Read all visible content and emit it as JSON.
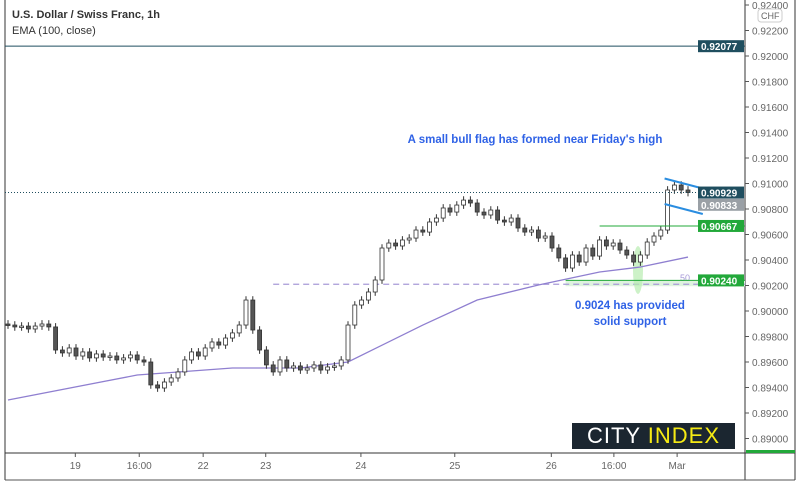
{
  "header": {
    "title": "U.S. Dollar / Swiss Franc, 1h",
    "indicator": "EMA (100, close)"
  },
  "annotations": {
    "flag_note": "A small bull flag has formed near Friday's high",
    "support_note": "0.9024 has provided solid support",
    "fib_label": "50"
  },
  "logo": {
    "part1": "CITY",
    "part2": "INDEX"
  },
  "chart_data": {
    "type": "candlestick",
    "currency_label": "CHF",
    "ylim": [
      0.8886,
      0.9242
    ],
    "y_ticks": [
      "0.92400",
      "0.92200",
      "0.92000",
      "0.91800",
      "0.91600",
      "0.91400",
      "0.91200",
      "0.91000",
      "0.90800",
      "0.90600",
      "0.90400",
      "0.90200",
      "0.90000",
      "0.89800",
      "0.89600",
      "0.89400",
      "0.89200",
      "0.89000"
    ],
    "x_ticks": [
      {
        "label": "19",
        "at": 9.9
      },
      {
        "label": "16:00",
        "at": 19.3
      },
      {
        "label": "22",
        "at": 28.7
      },
      {
        "label": "23",
        "at": 37.9
      },
      {
        "label": "24",
        "at": 51.9
      },
      {
        "label": "25",
        "at": 65.7
      },
      {
        "label": "26",
        "at": 79.9
      },
      {
        "label": "16:00",
        "at": 89.1
      },
      {
        "label": "Mar",
        "at": 98.4
      }
    ],
    "closes": [
      0.8989,
      0.89875,
      0.89882,
      0.89859,
      0.89882,
      0.89898,
      0.89875,
      0.89694,
      0.89671,
      0.8971,
      0.89647,
      0.89679,
      0.89632,
      0.89663,
      0.89639,
      0.89647,
      0.89616,
      0.89632,
      0.89655,
      0.89616,
      0.896,
      0.8942,
      0.89396,
      0.89443,
      0.89475,
      0.89522,
      0.89616,
      0.89679,
      0.89647,
      0.8971,
      0.89757,
      0.89733,
      0.89788,
      0.89828,
      0.8989,
      0.90086,
      0.89851,
      0.89694,
      0.89577,
      0.89522,
      0.89616,
      0.89553,
      0.89569,
      0.89537,
      0.89553,
      0.89577,
      0.89537,
      0.89561,
      0.89569,
      0.89616,
      0.8989,
      0.90047,
      0.90086,
      0.90149,
      0.90243,
      0.90494,
      0.90533,
      0.9051,
      0.90557,
      0.90572,
      0.90635,
      0.90619,
      0.90698,
      0.90729,
      0.90808,
      0.90776,
      0.90831,
      0.9087,
      0.90847,
      0.90776,
      0.90753,
      0.90792,
      0.90713,
      0.90698,
      0.90729,
      0.90651,
      0.90619,
      0.90635,
      0.90572,
      0.90588,
      0.90494,
      0.90416,
      0.90337,
      0.90439,
      0.90384,
      0.90494,
      0.90431,
      0.90557,
      0.9051,
      0.90533,
      0.90478,
      0.90439,
      0.90384,
      0.90439,
      0.90541,
      0.90588,
      0.90635,
      0.90949,
      0.90988,
      0.90949,
      0.90929
    ],
    "ema": [
      {
        "i": 0,
        "v": 0.89302
      },
      {
        "i": 19,
        "v": 0.89498
      },
      {
        "i": 33,
        "v": 0.89553
      },
      {
        "i": 43,
        "v": 0.89553
      },
      {
        "i": 50,
        "v": 0.896
      },
      {
        "i": 61,
        "v": 0.8989
      },
      {
        "i": 69,
        "v": 0.90086
      },
      {
        "i": 78,
        "v": 0.90204
      },
      {
        "i": 87,
        "v": 0.90306
      },
      {
        "i": 93,
        "v": 0.90345
      },
      {
        "i": 100,
        "v": 0.90423
      }
    ],
    "levels": [
      {
        "value": 0.92077,
        "label": "0.92077",
        "color": "#1f4e5f",
        "style": "solid",
        "from": 0
      },
      {
        "value": 0.90929,
        "label": "0.90929",
        "color": "#1f4e5f",
        "style": "dotted",
        "from": 0
      },
      {
        "value": 0.90833,
        "label": "0.90833",
        "color": "#9aa0a6",
        "style": "none",
        "from": 0
      },
      {
        "value": 0.90667,
        "label": "0.90667",
        "color": "#22a83a",
        "style": "solid",
        "from": 87
      },
      {
        "value": 0.9024,
        "label": "0.90240",
        "color": "#22a83a",
        "style": "solid",
        "from": 82
      }
    ],
    "fib_level": {
      "value": 0.9021,
      "from": 39,
      "color": "#a79ad8"
    },
    "flag": {
      "top": [
        [
          97,
          0.91039
        ],
        [
          101,
          0.90961
        ]
      ],
      "bottom": [
        [
          97,
          0.90839
        ],
        [
          101,
          0.90761
        ]
      ],
      "color": "#2a8de0"
    },
    "colors": {
      "candle_up": "#ffffff",
      "candle_down": "#555555",
      "ema": "#8f7fd0",
      "note": "#2f62e6"
    }
  }
}
